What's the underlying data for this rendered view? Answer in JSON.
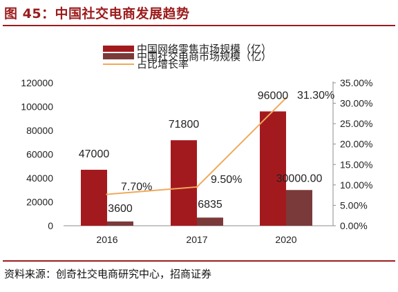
{
  "figure": {
    "title": "图 45：中国社交电商发展趋势",
    "source": "资料来源：创奇社交电商研究中心，招商证券"
  },
  "chart_data": {
    "type": "bar",
    "categories": [
      "2016",
      "2017",
      "2020"
    ],
    "series": [
      {
        "name": "中国网络零售市场规模（亿）",
        "kind": "bar",
        "axis": "left",
        "color": "#a31a1e",
        "values": [
          47000,
          71800,
          96000
        ],
        "labels": [
          "47000",
          "71800",
          "96000"
        ]
      },
      {
        "name": "中国社交电商市场规模（亿）",
        "kind": "bar",
        "axis": "left",
        "color": "#7b3a3a",
        "values": [
          3600,
          6835,
          30000
        ],
        "labels": [
          "3600",
          "6835",
          "30000.00"
        ]
      },
      {
        "name": "占比增长率",
        "kind": "line",
        "axis": "right",
        "color": "#f0a95b",
        "values": [
          7.7,
          9.5,
          31.3
        ],
        "labels": [
          "7.70%",
          "9.50%",
          "31.30%"
        ]
      }
    ],
    "left_axis": {
      "ylim": [
        0,
        120000
      ],
      "ticks": [
        "0",
        "20000",
        "40000",
        "60000",
        "80000",
        "100000",
        "120000"
      ]
    },
    "right_axis": {
      "ylim": [
        0,
        35
      ],
      "ticks": [
        "0.00%",
        "5.00%",
        "10.00%",
        "15.00%",
        "20.00%",
        "25.00%",
        "30.00%",
        "35.00%"
      ]
    },
    "grid": false,
    "legend": "top-center"
  }
}
